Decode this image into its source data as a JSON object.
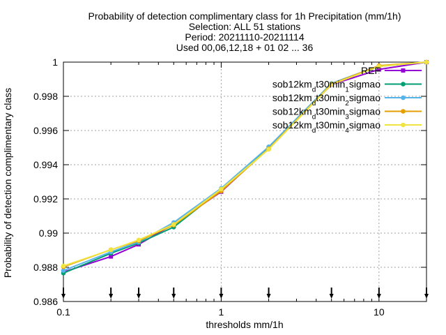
{
  "title_lines": [
    "Probability of detection complimentary class  for 1h Precipitation (mm/1h)",
    "Selection: ALL     51 stations",
    "Period: 20211110-20211114",
    "Used 00,06,12,18 + 01 02 ... 36"
  ],
  "chart_data": {
    "type": "line",
    "title": "Probability of detection complimentary class  for 1h Precipitation (mm/1h)",
    "xlabel": "thresholds mm/1h",
    "ylabel": "Probability of detection complimentary class",
    "x_scale": "log",
    "xlim": [
      0.1,
      20
    ],
    "ylim": [
      0.986,
      1.0
    ],
    "x_ticks": [
      {
        "value": 0.1,
        "label": "0.1"
      },
      {
        "value": 1,
        "label": "1"
      },
      {
        "value": 10,
        "label": "10"
      }
    ],
    "y_ticks": [
      {
        "value": 0.986,
        "label": "0.986"
      },
      {
        "value": 0.988,
        "label": "0.988"
      },
      {
        "value": 0.99,
        "label": "0.99"
      },
      {
        "value": 0.992,
        "label": "0.992"
      },
      {
        "value": 0.994,
        "label": "0.994"
      },
      {
        "value": 0.996,
        "label": "0.996"
      },
      {
        "value": 0.998,
        "label": "0.998"
      },
      {
        "value": 1.0,
        "label": "1"
      }
    ],
    "grid": true,
    "legend_position": "top-right",
    "threshold_markers": [
      0.1,
      0.2,
      0.3,
      0.5,
      1,
      2,
      5,
      10,
      20
    ],
    "x": [
      0.1,
      0.2,
      0.3,
      0.5,
      1,
      2,
      5,
      10,
      20
    ],
    "series": [
      {
        "name": "REF",
        "legend_parts": [
          {
            "t": "REF"
          }
        ],
        "color": "#9400d3",
        "marker": "square",
        "values": [
          0.98772,
          0.98863,
          0.98934,
          0.99053,
          0.99242,
          0.99498,
          0.99868,
          0.99957,
          1.0
        ]
      },
      {
        "name": "sob12km_dt30min_1sigmao",
        "legend_parts": [
          {
            "t": "sob12km"
          },
          {
            "t": "d",
            "sub": true
          },
          {
            "t": "t30min"
          },
          {
            "t": "1",
            "sub": true
          },
          {
            "t": "sigmao"
          }
        ],
        "color": "#009e73",
        "marker": "circle",
        "values": [
          0.98766,
          0.98882,
          0.98942,
          0.99035,
          0.99254,
          0.99502,
          0.9987,
          0.99975,
          1.0
        ]
      },
      {
        "name": "sob12km_dt30min_2sigmao",
        "legend_parts": [
          {
            "t": "sob12km"
          },
          {
            "t": "d",
            "sub": true
          },
          {
            "t": "t30min"
          },
          {
            "t": "2",
            "sub": true
          },
          {
            "t": "sigmao"
          }
        ],
        "color": "#56b4e9",
        "marker": "circle",
        "values": [
          0.98781,
          0.9889,
          0.98948,
          0.99062,
          0.99262,
          0.99505,
          0.99876,
          0.99978,
          1.0
        ]
      },
      {
        "name": "sob12km_dt30min_3sigmao",
        "legend_parts": [
          {
            "t": "sob12km"
          },
          {
            "t": "d",
            "sub": true
          },
          {
            "t": "t30min"
          },
          {
            "t": "3",
            "sub": true
          },
          {
            "t": "sigmao"
          }
        ],
        "color": "#e69f00",
        "marker": "circle",
        "values": [
          0.98803,
          0.98903,
          0.98955,
          0.99047,
          0.99246,
          0.99493,
          0.99872,
          0.99979,
          1.0
        ]
      },
      {
        "name": "sob12km_dt30min_4sigmao",
        "legend_parts": [
          {
            "t": "sob12km"
          },
          {
            "t": "d",
            "sub": true
          },
          {
            "t": "t30min"
          },
          {
            "t": "4",
            "sub": true
          },
          {
            "t": "sigmao"
          }
        ],
        "color": "#f0e442",
        "marker": "circle",
        "values": [
          0.98808,
          0.98902,
          0.9896,
          0.99051,
          0.99257,
          0.9949,
          0.99869,
          0.99975,
          1.0
        ]
      }
    ]
  }
}
